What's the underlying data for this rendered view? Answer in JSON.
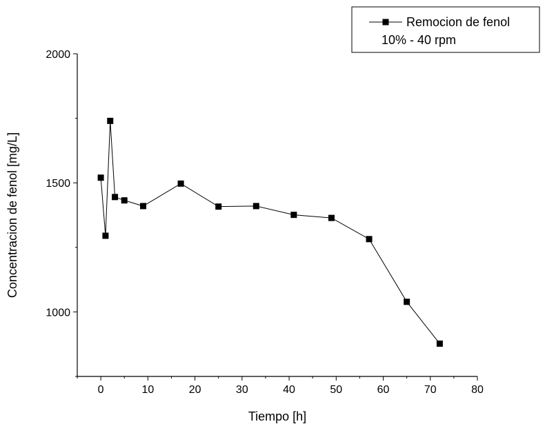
{
  "chart_data": {
    "type": "line",
    "title": "",
    "xlabel": "Tiempo [h]",
    "ylabel": "Concentracion de fenol [mg/L]",
    "xlim": [
      -5,
      80
    ],
    "ylim": [
      750,
      2000
    ],
    "xticks": [
      0,
      10,
      20,
      30,
      40,
      50,
      60,
      70,
      80
    ],
    "yticks": [
      1000,
      1500,
      2000
    ],
    "grid": false,
    "legend_position": "top-right",
    "legend": [
      "Remocion de fenol",
      "10% - 40 rpm"
    ],
    "series": [
      {
        "name": "Remocion de fenol",
        "marker": "square",
        "color": "#000000",
        "x": [
          0,
          1,
          2,
          3,
          5,
          9,
          17,
          25,
          33,
          41,
          49,
          57,
          65,
          72
        ],
        "y": [
          1520,
          1295,
          1740,
          1445,
          1432,
          1410,
          1497,
          1408,
          1410,
          1376,
          1364,
          1282,
          1039,
          877
        ]
      }
    ]
  }
}
